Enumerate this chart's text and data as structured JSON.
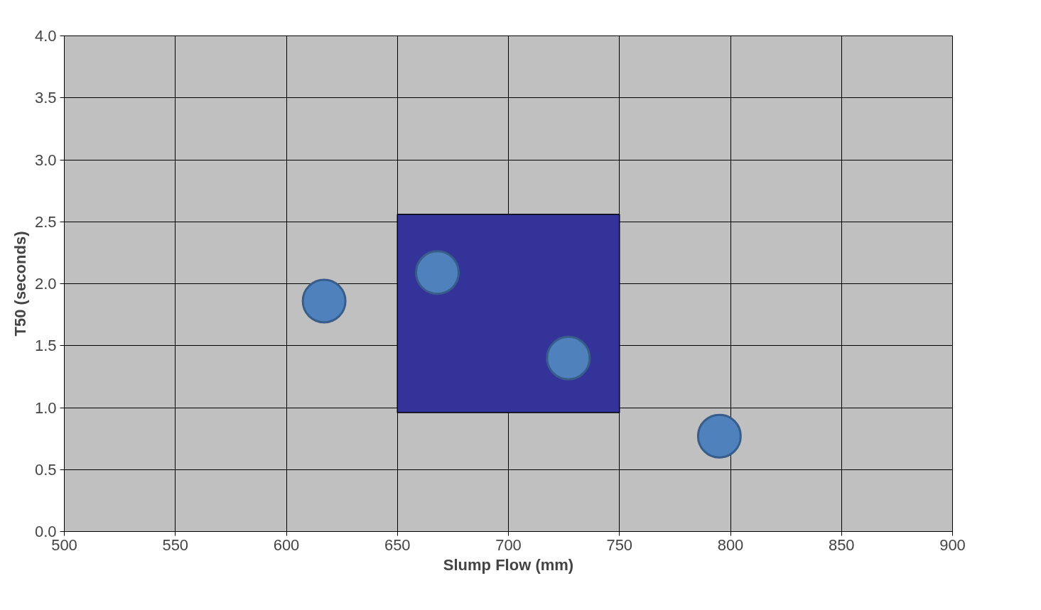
{
  "chart_data": {
    "type": "scatter",
    "xlabel": "Slump Flow (mm)",
    "ylabel": "T50 (seconds)",
    "xlim": [
      500,
      900
    ],
    "ylim": [
      0,
      4
    ],
    "xticks": [
      500,
      550,
      600,
      650,
      700,
      750,
      800,
      850,
      900
    ],
    "yticks": [
      {
        "value": 0,
        "label": "0.0"
      },
      {
        "value": 0.5,
        "label": "0.5"
      },
      {
        "value": 1,
        "label": "1.0"
      },
      {
        "value": 1.5,
        "label": "1.5"
      },
      {
        "value": 2,
        "label": "2.0"
      },
      {
        "value": 2.5,
        "label": "2.5"
      },
      {
        "value": 3,
        "label": "3.0"
      },
      {
        "value": 3.5,
        "label": "3.5"
      },
      {
        "value": 4,
        "label": "4.0"
      }
    ],
    "grid": true,
    "series": [
      {
        "marker": "circle",
        "color": "#4f81bd",
        "x": [
          617,
          668,
          727,
          795
        ],
        "values": [
          1.86,
          2.09,
          1.4,
          0.77
        ]
      },
      {
        "type": "bar",
        "color": "#333399",
        "x": [
          700
        ],
        "base": [
          0.96
        ],
        "values": [
          1.6
        ]
      }
    ]
  }
}
